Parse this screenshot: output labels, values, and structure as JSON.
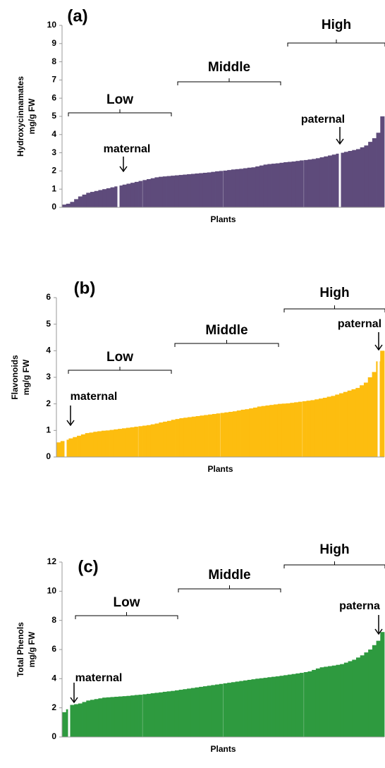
{
  "chart_data": [
    {
      "type": "bar",
      "panel_label": "(a)",
      "ylabel": [
        "Hydroxycinnamates",
        "mg/g FW"
      ],
      "xlabel": "Plants",
      "color": "#5e4b7b",
      "ylim": [
        0,
        10
      ],
      "yticks": [
        0,
        1,
        2,
        3,
        4,
        5,
        6,
        7,
        8,
        9,
        10
      ],
      "annotations": [
        "Low",
        "Middle",
        "High",
        "maternal",
        "paternal"
      ],
      "values": [
        0.15,
        0.2,
        0.3,
        0.45,
        0.6,
        0.7,
        0.8,
        0.85,
        0.9,
        0.95,
        1.0,
        1.05,
        1.1,
        1.15,
        1.2,
        1.25,
        1.3,
        1.35,
        1.4,
        1.45,
        1.5,
        1.55,
        1.6,
        1.65,
        1.68,
        1.7,
        1.72,
        1.74,
        1.76,
        1.78,
        1.8,
        1.82,
        1.84,
        1.86,
        1.88,
        1.9,
        1.92,
        1.95,
        1.98,
        2.0,
        2.02,
        2.05,
        2.08,
        2.1,
        2.12,
        2.15,
        2.18,
        2.2,
        2.25,
        2.3,
        2.35,
        2.38,
        2.4,
        2.42,
        2.45,
        2.48,
        2.5,
        2.52,
        2.55,
        2.58,
        2.6,
        2.63,
        2.66,
        2.7,
        2.75,
        2.8,
        2.85,
        2.9,
        2.95,
        3.0,
        3.05,
        3.1,
        3.15,
        3.2,
        3.3,
        3.4,
        3.6,
        3.8,
        4.1,
        5.0
      ]
    },
    {
      "type": "bar",
      "panel_label": "(b)",
      "ylabel": [
        "Flavonoids",
        "mg/g FW"
      ],
      "xlabel": "Plants",
      "color": "#fdbd0f",
      "ylim": [
        0,
        6
      ],
      "yticks": [
        0,
        1,
        2,
        3,
        4,
        5,
        6
      ],
      "annotations": [
        "Low",
        "Middle",
        "High",
        "maternal",
        "paternal"
      ],
      "values": [
        0.55,
        0.6,
        0.65,
        0.7,
        0.75,
        0.8,
        0.85,
        0.9,
        0.92,
        0.95,
        0.97,
        0.99,
        1.0,
        1.02,
        1.04,
        1.06,
        1.08,
        1.1,
        1.12,
        1.14,
        1.16,
        1.18,
        1.2,
        1.23,
        1.26,
        1.3,
        1.33,
        1.36,
        1.4,
        1.43,
        1.46,
        1.48,
        1.5,
        1.52,
        1.54,
        1.56,
        1.58,
        1.6,
        1.62,
        1.64,
        1.66,
        1.68,
        1.7,
        1.72,
        1.75,
        1.78,
        1.8,
        1.83,
        1.86,
        1.9,
        1.92,
        1.94,
        1.96,
        1.98,
        2.0,
        2.01,
        2.02,
        2.04,
        2.06,
        2.08,
        2.1,
        2.12,
        2.14,
        2.17,
        2.2,
        2.23,
        2.27,
        2.3,
        2.35,
        2.4,
        2.45,
        2.5,
        2.55,
        2.6,
        2.7,
        2.8,
        3.0,
        3.2,
        3.6,
        4.0
      ]
    },
    {
      "type": "bar",
      "panel_label": "(c)",
      "ylabel": [
        "Total Phenols",
        "mg/g FW"
      ],
      "xlabel": "Plants",
      "color": "#2e9a3f",
      "ylim": [
        0,
        12
      ],
      "yticks": [
        0,
        2,
        4,
        6,
        8,
        10,
        12
      ],
      "annotations": [
        "Low",
        "Middle",
        "High",
        "maternal",
        "paterna"
      ],
      "values": [
        1.7,
        1.9,
        2.2,
        2.25,
        2.3,
        2.4,
        2.5,
        2.55,
        2.6,
        2.65,
        2.7,
        2.72,
        2.74,
        2.76,
        2.78,
        2.8,
        2.82,
        2.85,
        2.88,
        2.9,
        2.93,
        2.96,
        3.0,
        3.03,
        3.06,
        3.1,
        3.13,
        3.16,
        3.2,
        3.24,
        3.28,
        3.32,
        3.36,
        3.4,
        3.44,
        3.48,
        3.52,
        3.56,
        3.6,
        3.64,
        3.68,
        3.72,
        3.76,
        3.8,
        3.84,
        3.88,
        3.92,
        3.96,
        4.0,
        4.03,
        4.06,
        4.1,
        4.13,
        4.16,
        4.2,
        4.24,
        4.28,
        4.32,
        4.36,
        4.4,
        4.45,
        4.5,
        4.6,
        4.7,
        4.78,
        4.82,
        4.86,
        4.9,
        4.95,
        5.0,
        5.1,
        5.2,
        5.3,
        5.45,
        5.6,
        5.8,
        6.0,
        6.3,
        6.6,
        7.2
      ]
    }
  ]
}
